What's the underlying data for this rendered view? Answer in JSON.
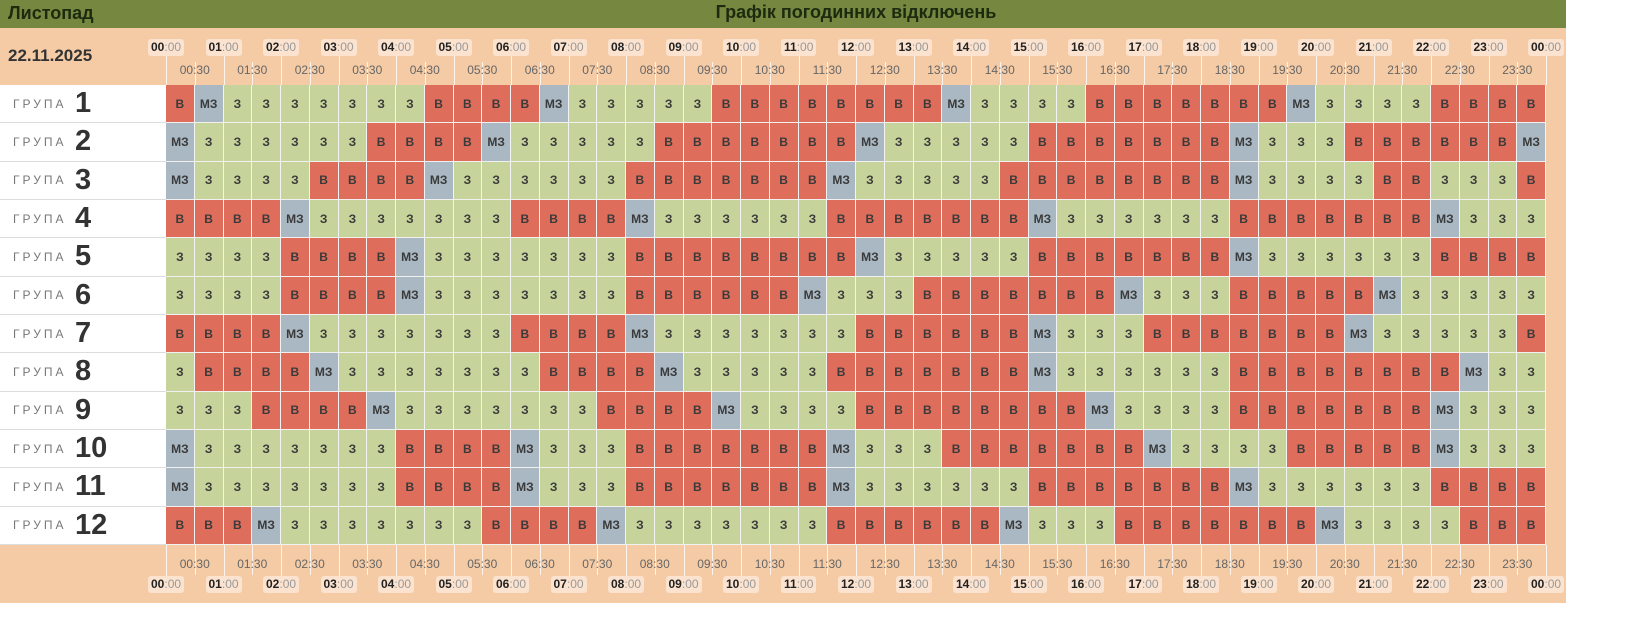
{
  "header": {
    "month": "Листопад",
    "title": "Графік погодинних відключень"
  },
  "date": "22.11.2025",
  "cell_colors": {
    "В": "#de6e5b",
    "З": "#c6d49c",
    "МЗ": "#a9b8c3"
  },
  "hour_labels": [
    {
      "hour": "00",
      "minutes": ":00"
    },
    {
      "hour": "01",
      "minutes": ":00"
    },
    {
      "hour": "02",
      "minutes": ":00"
    },
    {
      "hour": "03",
      "minutes": ":00"
    },
    {
      "hour": "04",
      "minutes": ":00"
    },
    {
      "hour": "05",
      "minutes": ":00"
    },
    {
      "hour": "06",
      "minutes": ":00"
    },
    {
      "hour": "07",
      "minutes": ":00"
    },
    {
      "hour": "08",
      "minutes": ":00"
    },
    {
      "hour": "09",
      "minutes": ":00"
    },
    {
      "hour": "10",
      "minutes": ":00"
    },
    {
      "hour": "11",
      "minutes": ":00"
    },
    {
      "hour": "12",
      "minutes": ":00"
    },
    {
      "hour": "13",
      "minutes": ":00"
    },
    {
      "hour": "14",
      "minutes": ":00"
    },
    {
      "hour": "15",
      "minutes": ":00"
    },
    {
      "hour": "16",
      "minutes": ":00"
    },
    {
      "hour": "17",
      "minutes": ":00"
    },
    {
      "hour": "18",
      "minutes": ":00"
    },
    {
      "hour": "19",
      "minutes": ":00"
    },
    {
      "hour": "20",
      "minutes": ":00"
    },
    {
      "hour": "21",
      "minutes": ":00"
    },
    {
      "hour": "22",
      "minutes": ":00"
    },
    {
      "hour": "23",
      "minutes": ":00"
    },
    {
      "hour": "00",
      "minutes": ":00"
    }
  ],
  "half_hour_labels": [
    "00:30",
    "01:30",
    "02:30",
    "03:30",
    "04:30",
    "05:30",
    "06:30",
    "07:30",
    "08:30",
    "09:30",
    "10:30",
    "11:30",
    "12:30",
    "13:30",
    "14:30",
    "15:30",
    "16:30",
    "17:30",
    "18:30",
    "19:30",
    "20:30",
    "21:30",
    "22:30",
    "23:30"
  ],
  "groups": [
    {
      "label": "ГРУПА",
      "number": "1",
      "cells": [
        "В",
        "МЗ",
        "З",
        "З",
        "З",
        "З",
        "З",
        "З",
        "З",
        "В",
        "В",
        "В",
        "В",
        "МЗ",
        "З",
        "З",
        "З",
        "З",
        "З",
        "В",
        "В",
        "В",
        "В",
        "В",
        "В",
        "В",
        "В",
        "МЗ",
        "З",
        "З",
        "З",
        "З",
        "В",
        "В",
        "В",
        "В",
        "В",
        "В",
        "В",
        "МЗ",
        "З",
        "З",
        "З",
        "З",
        "В",
        "В",
        "В",
        "В"
      ]
    },
    {
      "label": "ГРУПА",
      "number": "2",
      "cells": [
        "МЗ",
        "З",
        "З",
        "З",
        "З",
        "З",
        "З",
        "В",
        "В",
        "В",
        "В",
        "МЗ",
        "З",
        "З",
        "З",
        "З",
        "З",
        "В",
        "В",
        "В",
        "В",
        "В",
        "В",
        "В",
        "МЗ",
        "З",
        "З",
        "З",
        "З",
        "З",
        "В",
        "В",
        "В",
        "В",
        "В",
        "В",
        "В",
        "МЗ",
        "З",
        "З",
        "З",
        "В",
        "В",
        "В",
        "В",
        "В",
        "В",
        "МЗ"
      ]
    },
    {
      "label": "ГРУПА",
      "number": "3",
      "cells": [
        "МЗ",
        "З",
        "З",
        "З",
        "З",
        "В",
        "В",
        "В",
        "В",
        "МЗ",
        "З",
        "З",
        "З",
        "З",
        "З",
        "З",
        "В",
        "В",
        "В",
        "В",
        "В",
        "В",
        "В",
        "МЗ",
        "З",
        "З",
        "З",
        "З",
        "З",
        "В",
        "В",
        "В",
        "В",
        "В",
        "В",
        "В",
        "В",
        "МЗ",
        "З",
        "З",
        "З",
        "З",
        "В",
        "В",
        "З",
        "З",
        "З",
        "В"
      ]
    },
    {
      "label": "ГРУПА",
      "number": "4",
      "cells": [
        "В",
        "В",
        "В",
        "В",
        "МЗ",
        "З",
        "З",
        "З",
        "З",
        "З",
        "З",
        "З",
        "В",
        "В",
        "В",
        "В",
        "МЗ",
        "З",
        "З",
        "З",
        "З",
        "З",
        "З",
        "В",
        "В",
        "В",
        "В",
        "В",
        "В",
        "В",
        "МЗ",
        "З",
        "З",
        "З",
        "З",
        "З",
        "З",
        "В",
        "В",
        "В",
        "В",
        "В",
        "В",
        "В",
        "МЗ",
        "З",
        "З",
        "З"
      ]
    },
    {
      "label": "ГРУПА",
      "number": "5",
      "cells": [
        "З",
        "З",
        "З",
        "З",
        "В",
        "В",
        "В",
        "В",
        "МЗ",
        "З",
        "З",
        "З",
        "З",
        "З",
        "З",
        "З",
        "В",
        "В",
        "В",
        "В",
        "В",
        "В",
        "В",
        "В",
        "МЗ",
        "З",
        "З",
        "З",
        "З",
        "З",
        "В",
        "В",
        "В",
        "В",
        "В",
        "В",
        "В",
        "МЗ",
        "З",
        "З",
        "З",
        "З",
        "З",
        "З",
        "В",
        "В",
        "В",
        "В"
      ]
    },
    {
      "label": "ГРУПА",
      "number": "6",
      "cells": [
        "З",
        "З",
        "З",
        "З",
        "В",
        "В",
        "В",
        "В",
        "МЗ",
        "З",
        "З",
        "З",
        "З",
        "З",
        "З",
        "З",
        "В",
        "В",
        "В",
        "В",
        "В",
        "В",
        "МЗ",
        "З",
        "З",
        "З",
        "В",
        "В",
        "В",
        "В",
        "В",
        "В",
        "В",
        "МЗ",
        "З",
        "З",
        "З",
        "В",
        "В",
        "В",
        "В",
        "В",
        "МЗ",
        "З",
        "З",
        "З",
        "З",
        "З"
      ]
    },
    {
      "label": "ГРУПА",
      "number": "7",
      "cells": [
        "В",
        "В",
        "В",
        "В",
        "МЗ",
        "З",
        "З",
        "З",
        "З",
        "З",
        "З",
        "З",
        "В",
        "В",
        "В",
        "В",
        "МЗ",
        "З",
        "З",
        "З",
        "З",
        "З",
        "З",
        "З",
        "В",
        "В",
        "В",
        "В",
        "В",
        "В",
        "МЗ",
        "З",
        "З",
        "З",
        "В",
        "В",
        "В",
        "В",
        "В",
        "В",
        "В",
        "МЗ",
        "З",
        "З",
        "З",
        "З",
        "З",
        "В"
      ]
    },
    {
      "label": "ГРУПА",
      "number": "8",
      "cells": [
        "З",
        "В",
        "В",
        "В",
        "В",
        "МЗ",
        "З",
        "З",
        "З",
        "З",
        "З",
        "З",
        "З",
        "В",
        "В",
        "В",
        "В",
        "МЗ",
        "З",
        "З",
        "З",
        "З",
        "З",
        "В",
        "В",
        "В",
        "В",
        "В",
        "В",
        "В",
        "МЗ",
        "З",
        "З",
        "З",
        "З",
        "З",
        "З",
        "В",
        "В",
        "В",
        "В",
        "В",
        "В",
        "В",
        "В",
        "МЗ",
        "З",
        "З"
      ]
    },
    {
      "label": "ГРУПА",
      "number": "9",
      "cells": [
        "З",
        "З",
        "З",
        "В",
        "В",
        "В",
        "В",
        "МЗ",
        "З",
        "З",
        "З",
        "З",
        "З",
        "З",
        "З",
        "В",
        "В",
        "В",
        "В",
        "МЗ",
        "З",
        "З",
        "З",
        "З",
        "В",
        "В",
        "В",
        "В",
        "В",
        "В",
        "В",
        "В",
        "МЗ",
        "З",
        "З",
        "З",
        "З",
        "В",
        "В",
        "В",
        "В",
        "В",
        "В",
        "В",
        "МЗ",
        "З",
        "З",
        "З"
      ]
    },
    {
      "label": "ГРУПА",
      "number": "10",
      "cells": [
        "МЗ",
        "З",
        "З",
        "З",
        "З",
        "З",
        "З",
        "З",
        "В",
        "В",
        "В",
        "В",
        "МЗ",
        "З",
        "З",
        "З",
        "В",
        "В",
        "В",
        "В",
        "В",
        "В",
        "В",
        "МЗ",
        "З",
        "З",
        "З",
        "В",
        "В",
        "В",
        "В",
        "В",
        "В",
        "В",
        "МЗ",
        "З",
        "З",
        "З",
        "З",
        "В",
        "В",
        "В",
        "В",
        "В",
        "МЗ",
        "З",
        "З",
        "З"
      ]
    },
    {
      "label": "ГРУПА",
      "number": "11",
      "cells": [
        "МЗ",
        "З",
        "З",
        "З",
        "З",
        "З",
        "З",
        "З",
        "В",
        "В",
        "В",
        "В",
        "МЗ",
        "З",
        "З",
        "З",
        "В",
        "В",
        "В",
        "В",
        "В",
        "В",
        "В",
        "МЗ",
        "З",
        "З",
        "З",
        "З",
        "З",
        "З",
        "В",
        "В",
        "В",
        "В",
        "В",
        "В",
        "В",
        "МЗ",
        "З",
        "З",
        "З",
        "З",
        "З",
        "З",
        "В",
        "В",
        "В",
        "В"
      ]
    },
    {
      "label": "ГРУПА",
      "number": "12",
      "cells": [
        "В",
        "В",
        "В",
        "МЗ",
        "З",
        "З",
        "З",
        "З",
        "З",
        "З",
        "З",
        "В",
        "В",
        "В",
        "В",
        "МЗ",
        "З",
        "З",
        "З",
        "З",
        "З",
        "З",
        "З",
        "В",
        "В",
        "В",
        "В",
        "В",
        "В",
        "МЗ",
        "З",
        "З",
        "З",
        "В",
        "В",
        "В",
        "В",
        "В",
        "В",
        "В",
        "МЗ",
        "З",
        "З",
        "З",
        "З",
        "В",
        "В",
        "В"
      ]
    }
  ]
}
